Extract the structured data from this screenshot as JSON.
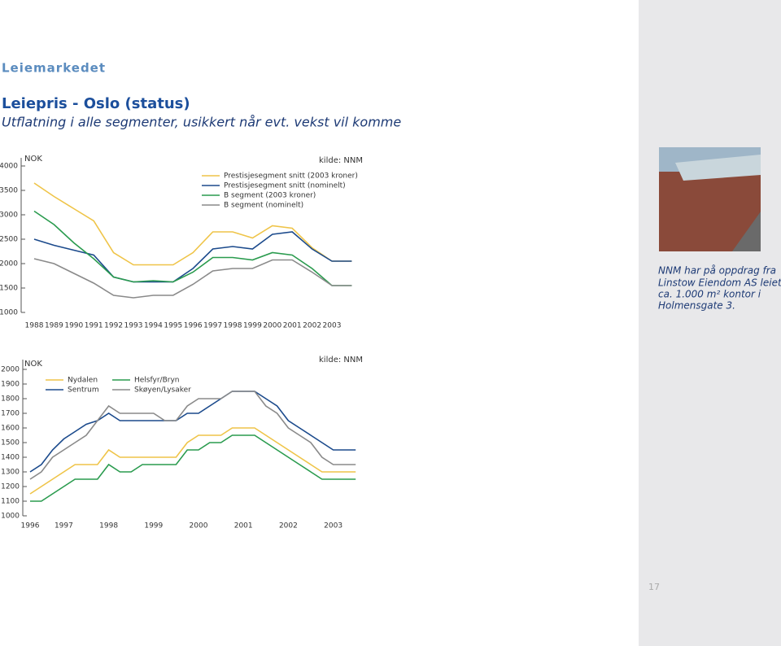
{
  "header": {
    "section": "Leiemarkedet",
    "title": "Leiepris - Oslo (status)",
    "subtitle": "Utflatning i alle segmenter, usikkert når evt. vekst vil komme"
  },
  "chart_data": [
    {
      "type": "line",
      "unit_label": "NOK",
      "source": "kilde: NNM",
      "categories": [
        "1988",
        "1989",
        "1990",
        "1991",
        "1992",
        "1993",
        "1994",
        "1995",
        "1996",
        "1997",
        "1998",
        "1999",
        "2000",
        "2001",
        "2002",
        "2003",
        null
      ],
      "series": [
        {
          "name": "Prestisjesegment snitt (2003 kroner)",
          "color": "#efc448",
          "values": [
            3650,
            3375,
            3125,
            2875,
            2225,
            1975,
            1975,
            1975,
            2225,
            2650,
            2650,
            2525,
            2775,
            2725,
            2325,
            2050,
            2050
          ]
        },
        {
          "name": "Prestisjesegment snitt (nominelt)",
          "color": "#1b4a8c",
          "values": [
            2500,
            2375,
            2275,
            2175,
            1725,
            1625,
            1625,
            1625,
            1900,
            2300,
            2350,
            2300,
            2600,
            2650,
            2300,
            2050,
            2050
          ]
        },
        {
          "name": "B segment (2003 kroner)",
          "color": "#2a9b4e",
          "values": [
            3075,
            2800,
            2425,
            2100,
            1725,
            1625,
            1650,
            1625,
            1825,
            2125,
            2125,
            2075,
            2225,
            2175,
            1900,
            1550,
            1550
          ]
        },
        {
          "name": "B segment (nominelt)",
          "color": "#8a8a8a",
          "values": [
            2100,
            2000,
            1800,
            1600,
            1350,
            1300,
            1350,
            1350,
            1575,
            1850,
            1900,
            1900,
            2075,
            2075,
            1825,
            1550,
            1550
          ]
        }
      ],
      "ylim": [
        1000,
        4000
      ],
      "yticks": [
        1000,
        1500,
        2000,
        2500,
        3000,
        3500,
        4000
      ]
    },
    {
      "type": "line",
      "unit_label": "NOK",
      "source": "kilde: NNM",
      "categories": [
        "1996",
        null,
        null,
        "1997",
        null,
        null,
        null,
        "1998",
        null,
        null,
        null,
        "1999",
        null,
        null,
        null,
        "2000",
        null,
        null,
        null,
        "2001",
        null,
        null,
        null,
        "2002",
        null,
        null,
        null,
        "2003",
        null,
        null
      ],
      "series": [
        {
          "name": "Nydalen",
          "color": "#efc448",
          "values": [
            1150,
            1200,
            1250,
            1300,
            1350,
            1350,
            1350,
            1450,
            1400,
            1400,
            1400,
            1400,
            1400,
            1400,
            1500,
            1550,
            1550,
            1550,
            1600,
            1600,
            1600,
            1550,
            1500,
            1450,
            1400,
            1350,
            1300,
            1300,
            1300,
            1300
          ]
        },
        {
          "name": "Sentrum",
          "color": "#1b4a8c",
          "values": [
            1300,
            1350,
            1450,
            1525,
            1575,
            1625,
            1650,
            1700,
            1650,
            1650,
            1650,
            1650,
            1650,
            1650,
            1700,
            1700,
            1750,
            1800,
            1850,
            1850,
            1850,
            1800,
            1750,
            1650,
            1600,
            1550,
            1500,
            1450,
            1450,
            1450
          ]
        },
        {
          "name": "Helsfyr/Bryn",
          "color": "#2a9b4e",
          "values": [
            1100,
            1100,
            1150,
            1200,
            1250,
            1250,
            1250,
            1350,
            1300,
            1300,
            1350,
            1350,
            1350,
            1350,
            1450,
            1450,
            1500,
            1500,
            1550,
            1550,
            1550,
            1500,
            1450,
            1400,
            1350,
            1300,
            1250,
            1250,
            1250,
            1250
          ]
        },
        {
          "name": "Skøyen/Lysaker",
          "color": "#8a8a8a",
          "values": [
            1250,
            1300,
            1400,
            1450,
            1500,
            1550,
            1650,
            1750,
            1700,
            1700,
            1700,
            1700,
            1650,
            1650,
            1750,
            1800,
            1800,
            1800,
            1850,
            1850,
            1850,
            1750,
            1700,
            1600,
            1550,
            1500,
            1400,
            1350,
            1350,
            1350
          ]
        }
      ],
      "ylim": [
        1000,
        2000
      ],
      "yticks": [
        1000,
        1100,
        1200,
        1300,
        1400,
        1500,
        1600,
        1700,
        1800,
        1900,
        2000
      ]
    }
  ],
  "caption": [
    "NNM har på oppdrag fra",
    "Linstow Eiendom AS leiet ut",
    "ca. 1.000 m² kontor i",
    "Holmensgate 3."
  ],
  "page_number": "17"
}
